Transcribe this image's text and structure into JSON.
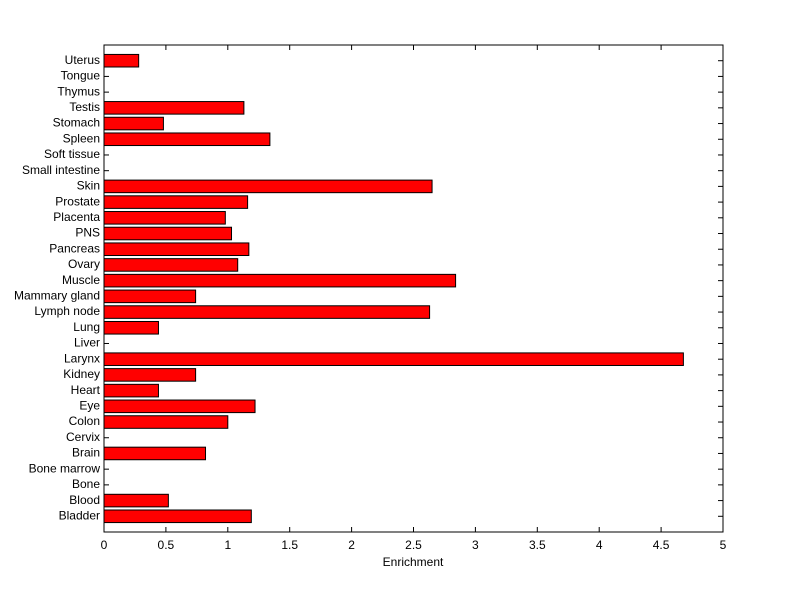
{
  "chart_data": {
    "type": "barh",
    "xlabel": "Enrichment",
    "color": "#ff0000",
    "categories": [
      "Bladder",
      "Blood",
      "Bone",
      "Bone marrow",
      "Brain",
      "Cervix",
      "Colon",
      "Eye",
      "Heart",
      "Kidney",
      "Larynx",
      "Liver",
      "Lung",
      "Lymph node",
      "Mammary gland",
      "Muscle",
      "Ovary",
      "Pancreas",
      "PNS",
      "Placenta",
      "Prostate",
      "Skin",
      "Small intestine",
      "Soft tissue",
      "Spleen",
      "Stomach",
      "Testis",
      "Thymus",
      "Tongue",
      "Uterus"
    ],
    "values": [
      1.19,
      0.52,
      0,
      0,
      0.82,
      0,
      1.0,
      1.22,
      0.44,
      0.74,
      4.68,
      0,
      0.44,
      2.63,
      0.74,
      2.84,
      1.08,
      1.17,
      1.03,
      0.98,
      1.16,
      2.65,
      0,
      0,
      1.34,
      0.48,
      1.13,
      0,
      0,
      0.28
    ],
    "xlim": [
      0,
      5
    ],
    "xticks": [
      0,
      0.5,
      1,
      1.5,
      2,
      2.5,
      3,
      3.5,
      4,
      4.5,
      5
    ]
  }
}
